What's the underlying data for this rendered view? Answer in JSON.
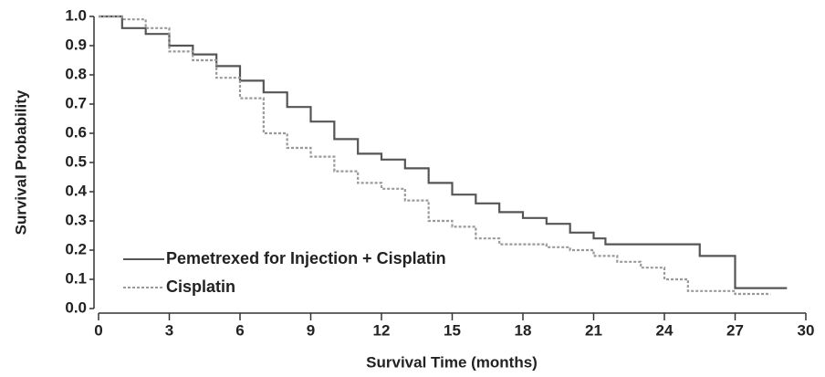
{
  "chart_data": {
    "type": "line",
    "step": "post",
    "xlabel": "Survival Time (months)",
    "ylabel": "Survival Probability",
    "xlim": [
      0,
      30
    ],
    "xticks": [
      0,
      3,
      6,
      9,
      12,
      15,
      18,
      21,
      24,
      27,
      30
    ],
    "ylim": [
      0,
      1
    ],
    "yticks": [
      {
        "value": 0,
        "label": "0.0"
      },
      0.1,
      0.2,
      0.3,
      0.4,
      0.5,
      0.6,
      0.7,
      0.8,
      0.9,
      {
        "value": 1,
        "label": "1.0"
      }
    ],
    "legend": "lower left",
    "series": [
      {
        "name": "Pemetrexed for Injection + Cisplatin",
        "color": "#555555",
        "dash": "solid",
        "x": [
          0,
          1,
          1,
          2,
          2,
          3,
          3,
          4,
          4,
          5,
          5,
          6,
          6,
          7,
          7,
          8,
          8,
          9,
          9,
          10,
          10,
          11,
          11,
          12,
          12,
          13,
          13,
          14,
          14,
          15,
          15,
          16,
          16,
          17,
          17,
          18,
          18,
          19,
          19,
          20,
          20,
          21,
          21,
          21.5,
          21.5,
          25.5,
          25.5,
          27,
          27,
          29.2
        ],
        "values": [
          1,
          1,
          0.96,
          0.96,
          0.94,
          0.94,
          0.9,
          0.9,
          0.87,
          0.87,
          0.83,
          0.83,
          0.78,
          0.78,
          0.74,
          0.74,
          0.69,
          0.69,
          0.64,
          0.64,
          0.58,
          0.58,
          0.53,
          0.53,
          0.51,
          0.51,
          0.48,
          0.48,
          0.43,
          0.43,
          0.39,
          0.39,
          0.36,
          0.36,
          0.33,
          0.33,
          0.31,
          0.31,
          0.29,
          0.29,
          0.26,
          0.26,
          0.24,
          0.24,
          0.22,
          0.22,
          0.18,
          0.18,
          0.07,
          0.07
        ]
      },
      {
        "name": "Cisplatin",
        "color": "#999999",
        "dash": "dotted",
        "x": [
          0,
          1,
          1,
          2,
          2,
          3,
          3,
          4,
          4,
          5,
          5,
          6,
          6,
          7,
          7,
          8,
          8,
          9,
          9,
          10,
          10,
          11,
          11,
          12,
          12,
          13,
          13,
          14,
          14,
          15,
          15,
          16,
          16,
          17,
          17,
          19,
          19,
          20,
          20,
          21,
          21,
          22,
          22,
          23,
          23,
          24,
          24,
          25,
          25,
          27,
          27,
          28.5
        ],
        "values": [
          1,
          1,
          0.99,
          0.99,
          0.96,
          0.96,
          0.88,
          0.88,
          0.85,
          0.85,
          0.79,
          0.79,
          0.72,
          0.72,
          0.6,
          0.6,
          0.55,
          0.55,
          0.52,
          0.52,
          0.47,
          0.47,
          0.43,
          0.43,
          0.41,
          0.41,
          0.37,
          0.37,
          0.3,
          0.3,
          0.28,
          0.28,
          0.24,
          0.24,
          0.22,
          0.22,
          0.21,
          0.21,
          0.2,
          0.2,
          0.18,
          0.18,
          0.16,
          0.16,
          0.14,
          0.14,
          0.1,
          0.1,
          0.06,
          0.06,
          0.05,
          0.05
        ]
      }
    ]
  }
}
